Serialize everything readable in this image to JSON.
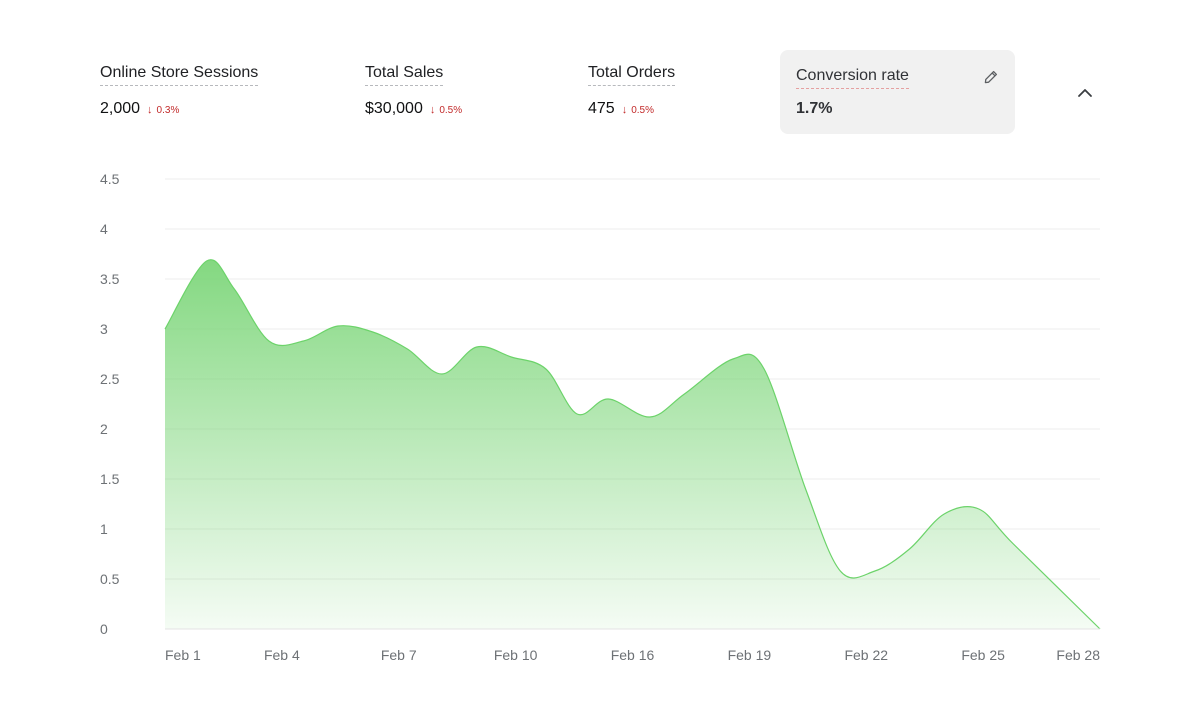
{
  "metrics": [
    {
      "label": "Online Store Sessions",
      "value": "2,000",
      "delta": "0.3%",
      "delta_direction": "down"
    },
    {
      "label": "Total Sales",
      "value": "$30,000",
      "delta": "0.5%",
      "delta_direction": "down"
    },
    {
      "label": "Total Orders",
      "value": "475",
      "delta": "0.5%",
      "delta_direction": "down"
    },
    {
      "label": "Conversion rate",
      "value": "1.7%",
      "selected": true
    }
  ],
  "icons": {
    "edit": "pencil-icon",
    "collapse": "chevron-up-icon",
    "delta_down": "arrow-down-icon"
  },
  "colors": {
    "series_line": "#6cd36a",
    "series_fill_top": "#7dd67a",
    "delta_negative": "#c22a2a",
    "selected_card_bg": "#f1f1f1"
  },
  "chart_data": {
    "type": "area",
    "x": [
      "Feb 1",
      "Feb 4",
      "Feb 7",
      "Feb 10",
      "Feb 16",
      "Feb 19",
      "Feb 22",
      "Feb 25",
      "Feb 28"
    ],
    "xlim": [
      1,
      28
    ],
    "ylim": [
      0,
      4.5
    ],
    "y_ticks": [
      "0",
      "0.5",
      "1",
      "1.5",
      "2",
      "2.5",
      "3",
      "3.5",
      "4",
      "4.5"
    ],
    "grid": true,
    "series": [
      {
        "points": [
          {
            "x": 1.0,
            "y": 3.0
          },
          {
            "x": 2.2,
            "y": 3.68
          },
          {
            "x": 3.0,
            "y": 3.4
          },
          {
            "x": 4.0,
            "y": 2.88
          },
          {
            "x": 5.0,
            "y": 2.88
          },
          {
            "x": 6.0,
            "y": 3.03
          },
          {
            "x": 7.0,
            "y": 2.97
          },
          {
            "x": 8.0,
            "y": 2.8
          },
          {
            "x": 9.0,
            "y": 2.55
          },
          {
            "x": 10.0,
            "y": 2.82
          },
          {
            "x": 11.0,
            "y": 2.72
          },
          {
            "x": 12.0,
            "y": 2.6
          },
          {
            "x": 12.9,
            "y": 2.15
          },
          {
            "x": 13.8,
            "y": 2.3
          },
          {
            "x": 15.0,
            "y": 2.12
          },
          {
            "x": 16.0,
            "y": 2.35
          },
          {
            "x": 17.4,
            "y": 2.7
          },
          {
            "x": 18.3,
            "y": 2.6
          },
          {
            "x": 19.5,
            "y": 1.4
          },
          {
            "x": 20.5,
            "y": 0.58
          },
          {
            "x": 21.5,
            "y": 0.58
          },
          {
            "x": 22.5,
            "y": 0.8
          },
          {
            "x": 23.5,
            "y": 1.15
          },
          {
            "x": 24.5,
            "y": 1.2
          },
          {
            "x": 25.5,
            "y": 0.85
          },
          {
            "x": 28.0,
            "y": 0.0
          }
        ]
      }
    ]
  }
}
